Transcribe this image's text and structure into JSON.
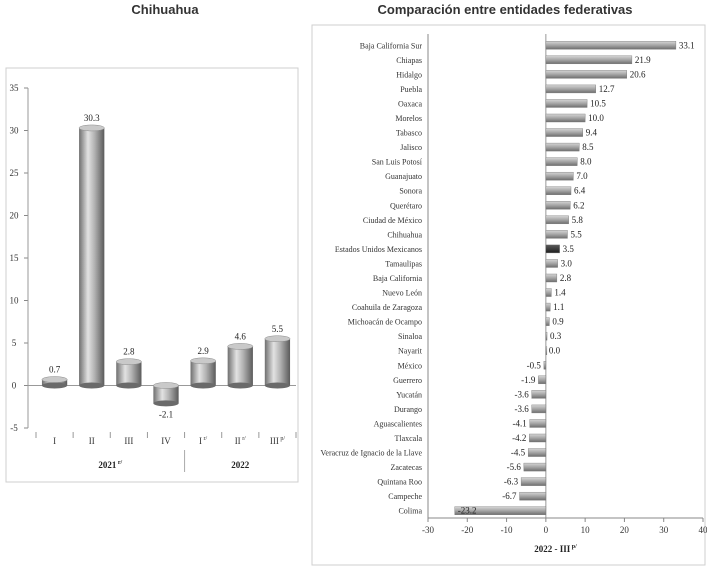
{
  "chart_data": [
    {
      "type": "bar",
      "title": "Chihuahua",
      "categories": [
        "I",
        "II",
        "III",
        "IV",
        "I",
        "II",
        "III"
      ],
      "category_markers": [
        "",
        "",
        "",
        "",
        "r/",
        "r/",
        "p/"
      ],
      "groups": [
        {
          "label": "2021",
          "marker": "r/",
          "span": [
            0,
            3
          ]
        },
        {
          "label": "2022",
          "marker": "",
          "span": [
            4,
            6
          ]
        }
      ],
      "values": [
        0.7,
        30.3,
        2.8,
        -2.1,
        2.9,
        4.6,
        5.5
      ],
      "value_labels": [
        "0.7",
        "30.3",
        "2.8",
        "-2.1",
        "2.9",
        "4.6",
        "5.5"
      ],
      "ylim": [
        -5,
        35
      ],
      "yticks": [
        -5,
        0,
        5,
        10,
        15,
        20,
        25,
        30,
        35
      ],
      "bar_color": "#a9a9a9",
      "grid": false
    },
    {
      "type": "bar",
      "orientation": "horizontal",
      "title": "Comparación entre entidades federativas",
      "xlabel": "2022 - III",
      "xlabel_marker": "p/",
      "xlim": [
        -30,
        40
      ],
      "xticks": [
        -30,
        -20,
        -10,
        0,
        10,
        20,
        30,
        40
      ],
      "categories": [
        "Baja California Sur",
        "Chiapas",
        "Hidalgo",
        "Puebla",
        "Oaxaca",
        "Morelos",
        "Tabasco",
        "Jalisco",
        "San Luis Potosí",
        "Guanajuato",
        "Sonora",
        "Querétaro",
        "Ciudad de México",
        "Chihuahua",
        "Estados Unidos Mexicanos",
        "Tamaulipas",
        "Baja California",
        "Nuevo León",
        "Coahuila de Zaragoza",
        "Michoacán de Ocampo",
        "Sinaloa",
        "Nayarit",
        "México",
        "Guerrero",
        "Yucatán",
        "Durango",
        "Aguascalientes",
        "Tlaxcala",
        "Veracruz de Ignacio de la Llave",
        "Zacatecas",
        "Quintana Roo",
        "Campeche",
        "Colima"
      ],
      "values": [
        33.1,
        21.9,
        20.6,
        12.7,
        10.5,
        10.0,
        9.4,
        8.5,
        8.0,
        7.0,
        6.4,
        6.2,
        5.8,
        5.5,
        3.5,
        3.0,
        2.8,
        1.4,
        1.1,
        0.9,
        0.3,
        0.0,
        -0.5,
        -1.9,
        -3.6,
        -3.6,
        -4.1,
        -4.2,
        -4.5,
        -5.6,
        -6.3,
        -6.7,
        -23.2
      ],
      "value_labels": [
        "33.1",
        "21.9",
        "20.6",
        "12.7",
        "10.5",
        "10.0",
        "9.4",
        "8.5",
        "8.0",
        "7.0",
        "6.4",
        "6.2",
        "5.8",
        "5.5",
        "3.5",
        "3.0",
        "2.8",
        "1.4",
        "1.1",
        "0.9",
        "0.3",
        "0.0",
        "-0.5",
        "-1.9",
        "-3.6",
        "-3.6",
        "-4.1",
        "-4.2",
        "-4.5",
        "-5.6",
        "-6.3",
        "-6.7",
        "-23.2"
      ],
      "highlight": "Estados Unidos Mexicanos",
      "bar_color": "#a9a9a9",
      "highlight_color": "#3a3a3a",
      "grid": false
    }
  ]
}
